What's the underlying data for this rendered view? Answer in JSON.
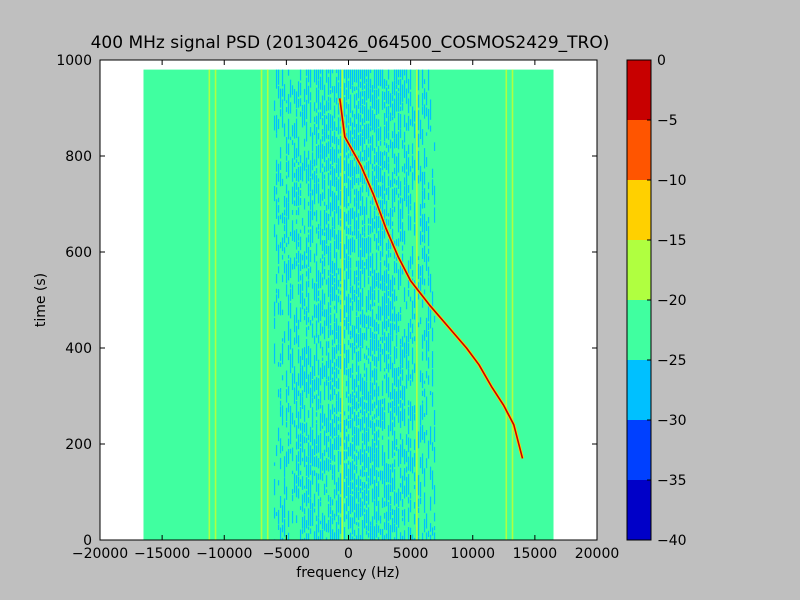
{
  "chart_data": {
    "type": "heatmap",
    "title": "400 MHz signal PSD (20130426_064500_COSMOS2429_TRO)",
    "xlabel": "frequency (Hz)",
    "ylabel": "time (s)",
    "xlim": [
      -20000,
      20000
    ],
    "ylim": [
      0,
      1000
    ],
    "x_ticks": [
      -20000,
      -15000,
      -10000,
      -5000,
      0,
      5000,
      10000,
      15000,
      20000
    ],
    "y_ticks": [
      0,
      200,
      400,
      600,
      800,
      1000
    ],
    "data_extent": {
      "x": [
        -16500,
        16500
      ],
      "y": [
        0,
        980
      ]
    },
    "colorbar": {
      "range": [
        -40,
        0
      ],
      "ticks": [
        0,
        -5,
        -10,
        -15,
        -20,
        -25,
        -30,
        -35,
        -40
      ],
      "levels": [
        {
          "from": -40,
          "to": -35,
          "color": "#0000c8"
        },
        {
          "from": -35,
          "to": -30,
          "color": "#0040ff"
        },
        {
          "from": -30,
          "to": -25,
          "color": "#00c0ff"
        },
        {
          "from": -25,
          "to": -20,
          "color": "#40ffa0"
        },
        {
          "from": -20,
          "to": -15,
          "color": "#b0ff40"
        },
        {
          "from": -15,
          "to": -10,
          "color": "#ffd000"
        },
        {
          "from": -10,
          "to": -5,
          "color": "#ff5500"
        },
        {
          "from": -5,
          "to": 0,
          "color": "#c80000"
        }
      ]
    },
    "background_level": -22,
    "noise_band": {
      "x": [
        -6000,
        7000
      ],
      "level": -27
    },
    "vertical_lines": [
      {
        "x": -11200,
        "level": -17
      },
      {
        "x": -10700,
        "level": -17
      },
      {
        "x": -7000,
        "level": -17
      },
      {
        "x": -6500,
        "level": -17
      },
      {
        "x": -500,
        "level": -17
      },
      {
        "x": 5500,
        "level": -17
      },
      {
        "x": 12700,
        "level": -17
      },
      {
        "x": 13200,
        "level": -17
      }
    ],
    "series": [
      {
        "level": -3,
        "points": [
          [
            -700,
            920
          ],
          [
            -300,
            840
          ],
          [
            1000,
            780
          ],
          [
            2000,
            720
          ],
          [
            3000,
            650
          ],
          [
            4000,
            590
          ],
          [
            5000,
            540
          ],
          [
            6500,
            490
          ],
          [
            8000,
            445
          ],
          [
            9500,
            400
          ],
          [
            10500,
            365
          ],
          [
            11500,
            320
          ],
          [
            12500,
            280
          ],
          [
            13300,
            240
          ],
          [
            14000,
            170
          ]
        ]
      }
    ]
  }
}
